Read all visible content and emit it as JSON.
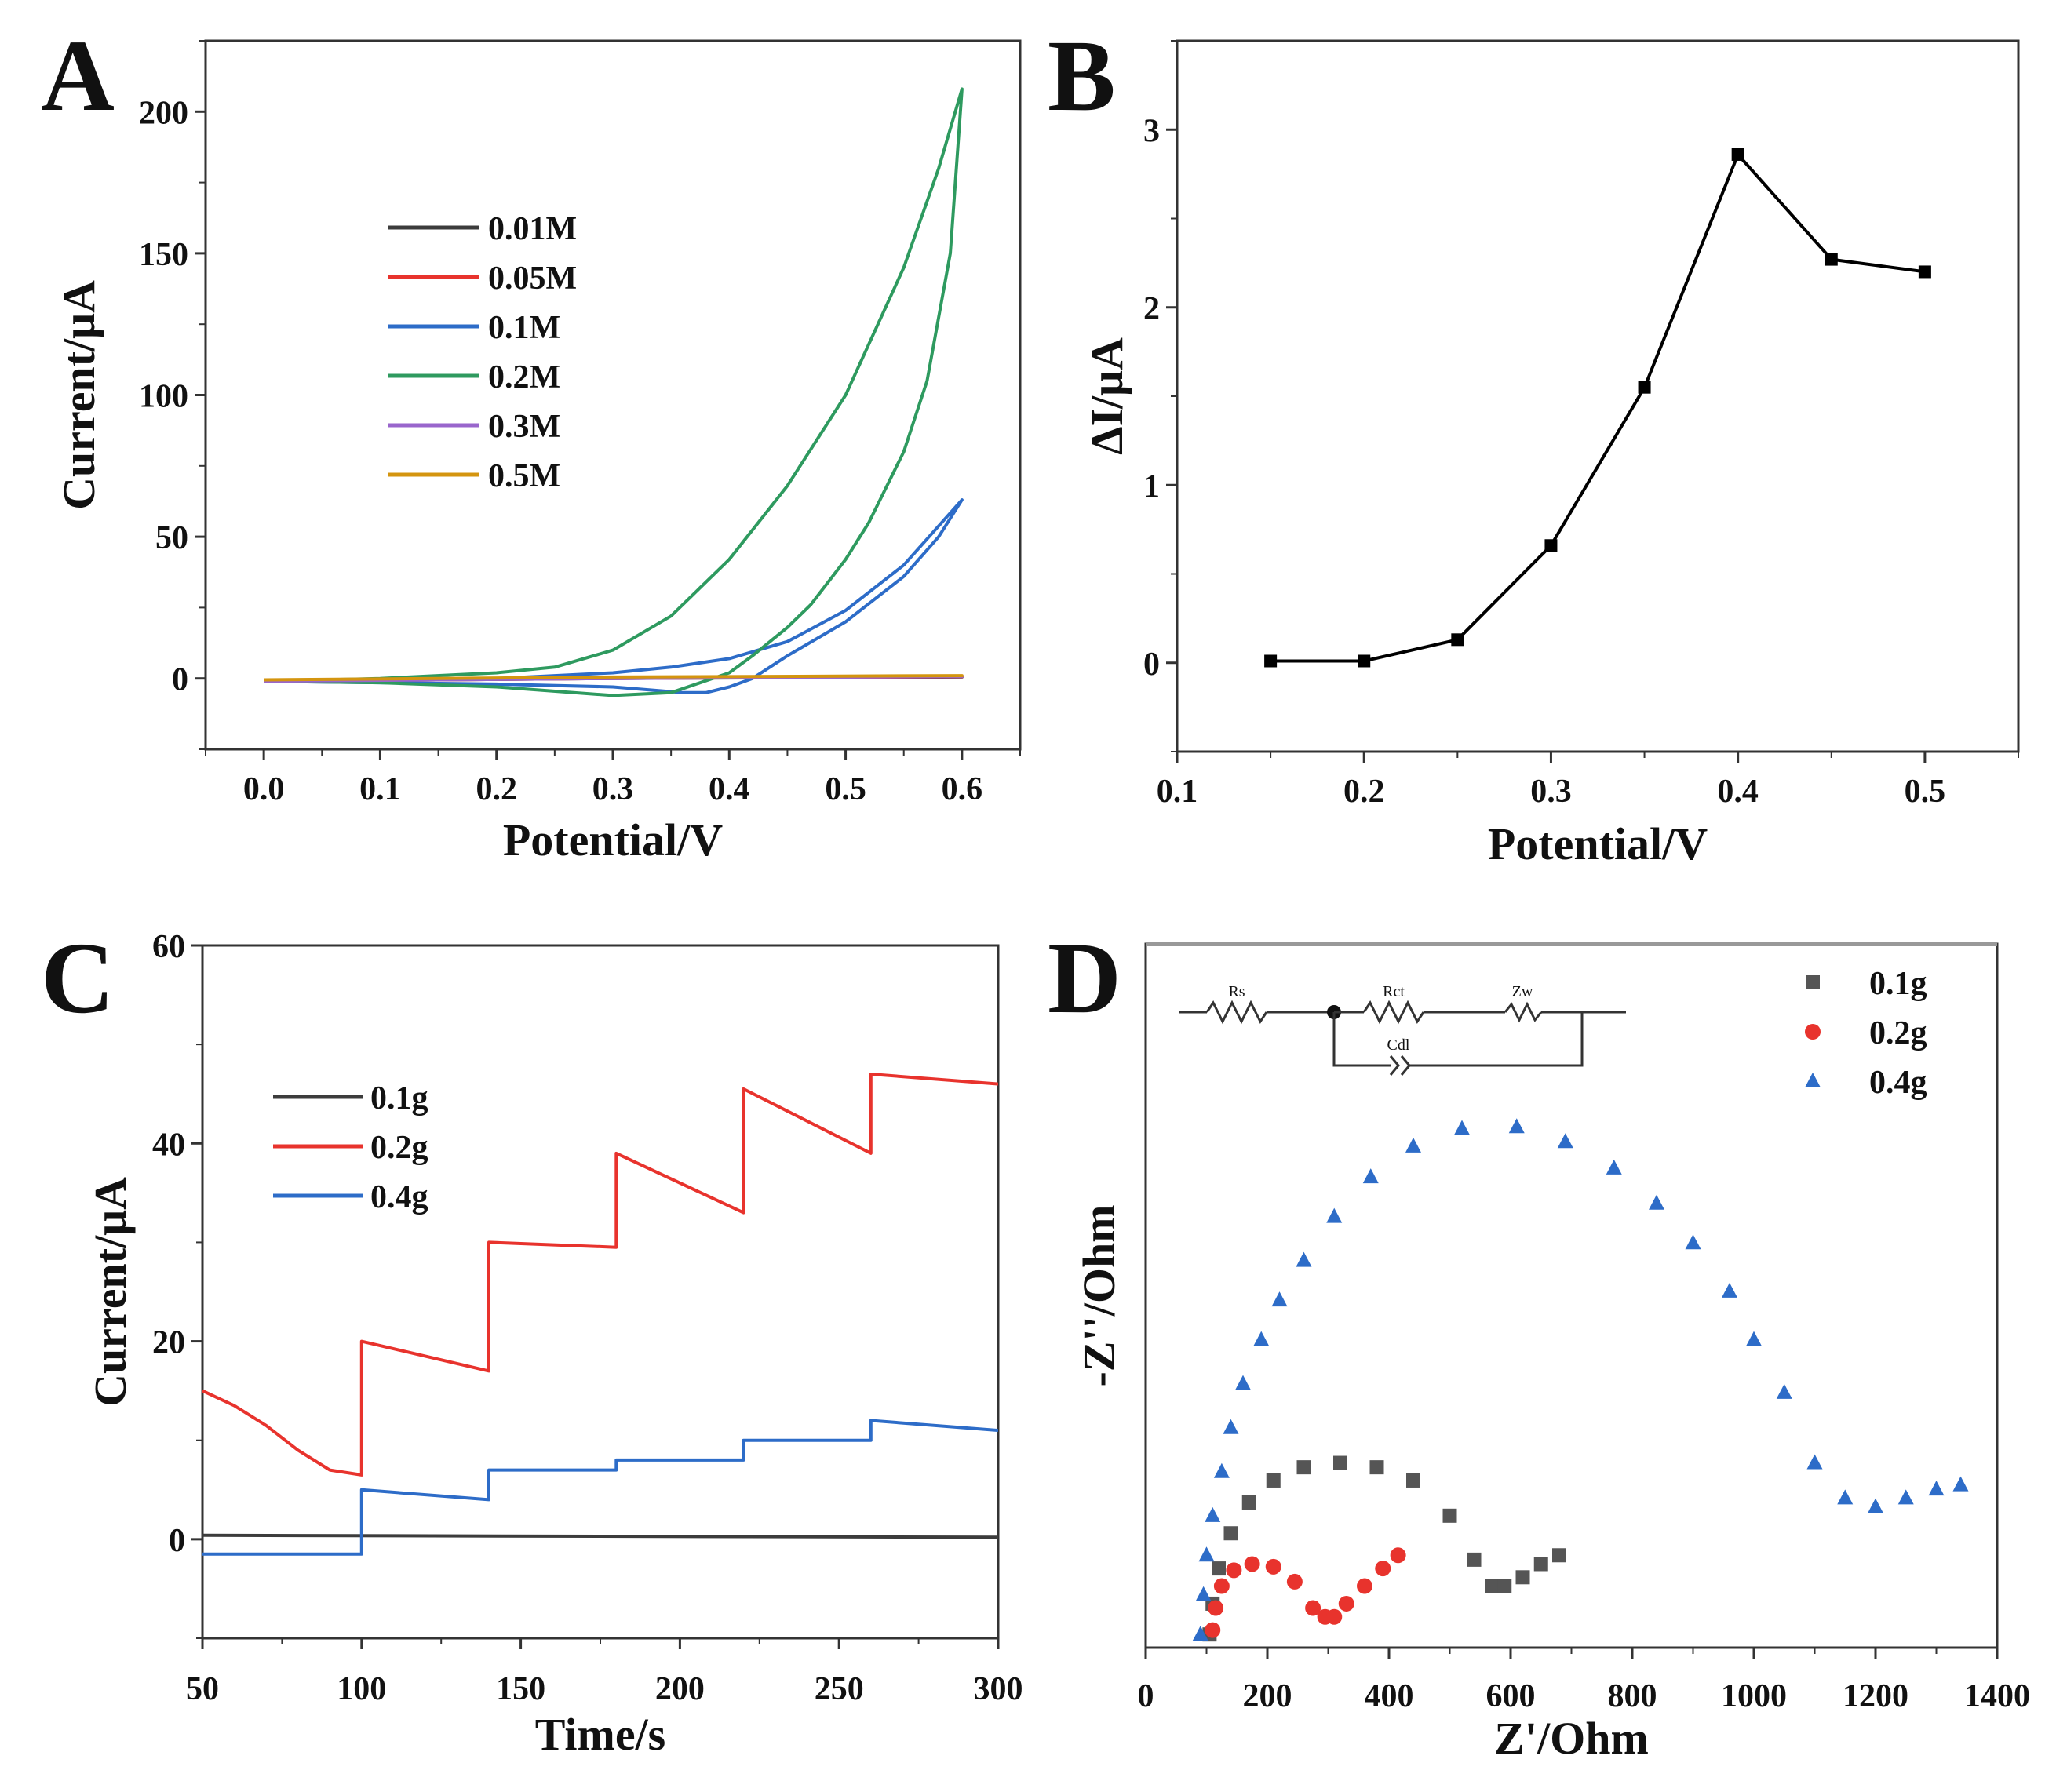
{
  "chart_data": [
    {
      "panel": "A",
      "type": "line",
      "xlabel": "Potential/V",
      "ylabel": "Current/μA",
      "xlim": [
        -0.05,
        0.65
      ],
      "ylim": [
        -25,
        225
      ],
      "xticks": [
        "0.0",
        "0.1",
        "0.2",
        "0.3",
        "0.4",
        "0.5",
        "0.6"
      ],
      "yticks": [
        "0",
        "50",
        "100",
        "150",
        "200"
      ],
      "legend_position": "upper-left",
      "series": [
        {
          "name": "0.01M",
          "color": "#3c3c3c",
          "x": [
            0.0,
            0.3,
            0.6,
            0.3,
            0.0
          ],
          "y": [
            -1,
            0,
            0.5,
            0,
            -1
          ]
        },
        {
          "name": "0.05M",
          "color": "#e8332d",
          "x": [
            0.0,
            0.3,
            0.6,
            0.3,
            0.0
          ],
          "y": [
            -1,
            0,
            0.6,
            0,
            -1
          ]
        },
        {
          "name": "0.1M",
          "color": "#2d6cc8",
          "x": [
            0.0,
            0.1,
            0.2,
            0.3,
            0.35,
            0.4,
            0.45,
            0.5,
            0.55,
            0.6,
            0.58,
            0.55,
            0.5,
            0.45,
            0.42,
            0.4,
            0.38,
            0.36,
            0.3,
            0.2,
            0.1,
            0.0
          ],
          "y": [
            -1,
            -0.5,
            0,
            2,
            4,
            7,
            13,
            24,
            40,
            63,
            50,
            36,
            20,
            8,
            0,
            -3,
            -5,
            -5,
            -3,
            -2,
            -1.5,
            -1
          ]
        },
        {
          "name": "0.2M",
          "color": "#2e9a5f",
          "x": [
            0.0,
            0.1,
            0.2,
            0.25,
            0.3,
            0.35,
            0.4,
            0.45,
            0.5,
            0.55,
            0.58,
            0.6,
            0.59,
            0.57,
            0.55,
            0.52,
            0.5,
            0.47,
            0.45,
            0.42,
            0.4,
            0.35,
            0.3,
            0.2,
            0.1,
            0.0
          ],
          "y": [
            -1,
            0,
            2,
            4,
            10,
            22,
            42,
            68,
            100,
            145,
            180,
            208,
            150,
            105,
            80,
            55,
            42,
            26,
            18,
            8,
            2,
            -5,
            -6,
            -3,
            -1.5,
            -1
          ]
        },
        {
          "name": "0.3M",
          "color": "#9966cc",
          "x": [
            0.0,
            0.3,
            0.6,
            0.3,
            0.0
          ],
          "y": [
            -1,
            0,
            0.7,
            0,
            -1
          ]
        },
        {
          "name": "0.5M",
          "color": "#d4950f",
          "x": [
            0.0,
            0.3,
            0.6,
            0.3,
            0.0
          ],
          "y": [
            -0.5,
            0.5,
            1,
            0.5,
            -0.5
          ]
        }
      ]
    },
    {
      "panel": "B",
      "type": "line",
      "xlabel": "Potential/V",
      "ylabel": "ΔI/μA",
      "xlim": [
        0.1,
        0.55
      ],
      "ylim": [
        -0.5,
        3.5
      ],
      "xticks": [
        "0.1",
        "0.2",
        "0.3",
        "0.4",
        "0.5"
      ],
      "yticks": [
        "0",
        "1",
        "2",
        "3"
      ],
      "series": [
        {
          "name": "ΔI",
          "color": "#000000",
          "x": [
            0.15,
            0.2,
            0.25,
            0.3,
            0.35,
            0.4,
            0.45,
            0.5
          ],
          "y": [
            0.01,
            0.01,
            0.13,
            0.66,
            1.55,
            2.86,
            2.27,
            2.2
          ]
        }
      ]
    },
    {
      "panel": "C",
      "type": "line",
      "xlabel": "Time/s",
      "ylabel": "Current/μA",
      "xlim": [
        50,
        300
      ],
      "ylim": [
        -10,
        60
      ],
      "xticks": [
        "50",
        "100",
        "150",
        "200",
        "250",
        "300"
      ],
      "yticks": [
        "0",
        "20",
        "40",
        "60"
      ],
      "legend_position": "upper-left",
      "series": [
        {
          "name": "0.1g",
          "color": "#3c3c3c",
          "x": [
            50,
            300
          ],
          "y": [
            0.4,
            0.2
          ]
        },
        {
          "name": "0.2g",
          "color": "#e8332d",
          "x": [
            50,
            60,
            70,
            80,
            90,
            100,
            100,
            140,
            140,
            180,
            180,
            220,
            220,
            260,
            260,
            300
          ],
          "y": [
            15,
            13.5,
            11.5,
            9,
            7,
            6.5,
            20,
            17,
            30,
            29.5,
            39,
            33,
            45.5,
            39,
            47,
            46
          ]
        },
        {
          "name": "0.4g",
          "color": "#2d6cc8",
          "x": [
            50,
            100,
            100,
            140,
            140,
            180,
            180,
            220,
            220,
            260,
            260,
            300
          ],
          "y": [
            -1.5,
            -1.5,
            5,
            4,
            7,
            7,
            8,
            8,
            10,
            10,
            12,
            11
          ]
        }
      ]
    },
    {
      "panel": "D",
      "type": "scatter",
      "xlabel": "Z'/Ohm",
      "ylabel": "-Z''/Ohm",
      "xlim": [
        0,
        1400
      ],
      "ylim": [
        0,
        800
      ],
      "xticks": [
        "0",
        "200",
        "400",
        "600",
        "800",
        "1000",
        "1200",
        "1400"
      ],
      "yticks": [],
      "legend_position": "upper-right",
      "series": [
        {
          "name": "0.1g",
          "color": "#555555",
          "marker": "square",
          "x": [
            105,
            110,
            120,
            140,
            170,
            210,
            260,
            320,
            380,
            440,
            500,
            540,
            570,
            590,
            620,
            650,
            680
          ],
          "y": [
            15,
            50,
            90,
            130,
            165,
            190,
            205,
            210,
            205,
            190,
            150,
            100,
            70,
            70,
            80,
            95,
            105
          ]
        },
        {
          "name": "0.2g",
          "color": "#e8332d",
          "marker": "circle",
          "x": [
            110,
            115,
            125,
            145,
            175,
            210,
            245,
            275,
            295,
            310,
            330,
            360,
            390,
            415
          ],
          "y": [
            20,
            45,
            70,
            88,
            95,
            92,
            75,
            45,
            35,
            35,
            50,
            70,
            90,
            105
          ]
        },
        {
          "name": "0.4g",
          "color": "#2d6cc8",
          "marker": "triangle",
          "x": [
            90,
            95,
            100,
            110,
            125,
            140,
            160,
            190,
            220,
            260,
            310,
            370,
            440,
            520,
            610,
            690,
            770,
            840,
            900,
            960,
            1000,
            1050,
            1100,
            1150,
            1200,
            1250,
            1300,
            1340
          ],
          "y": [
            15,
            60,
            105,
            150,
            200,
            250,
            300,
            350,
            395,
            440,
            490,
            535,
            570,
            590,
            592,
            575,
            545,
            505,
            460,
            405,
            350,
            290,
            210,
            170,
            160,
            170,
            180,
            185
          ]
        }
      ]
    }
  ],
  "panels": {
    "A": {
      "label": "A"
    },
    "B": {
      "label": "B"
    },
    "C": {
      "label": "C"
    },
    "D": {
      "label": "D"
    }
  },
  "circuit": {
    "rs": "Rs",
    "rct": "Rct",
    "zw": "Zw",
    "cdl": "Cdl"
  }
}
